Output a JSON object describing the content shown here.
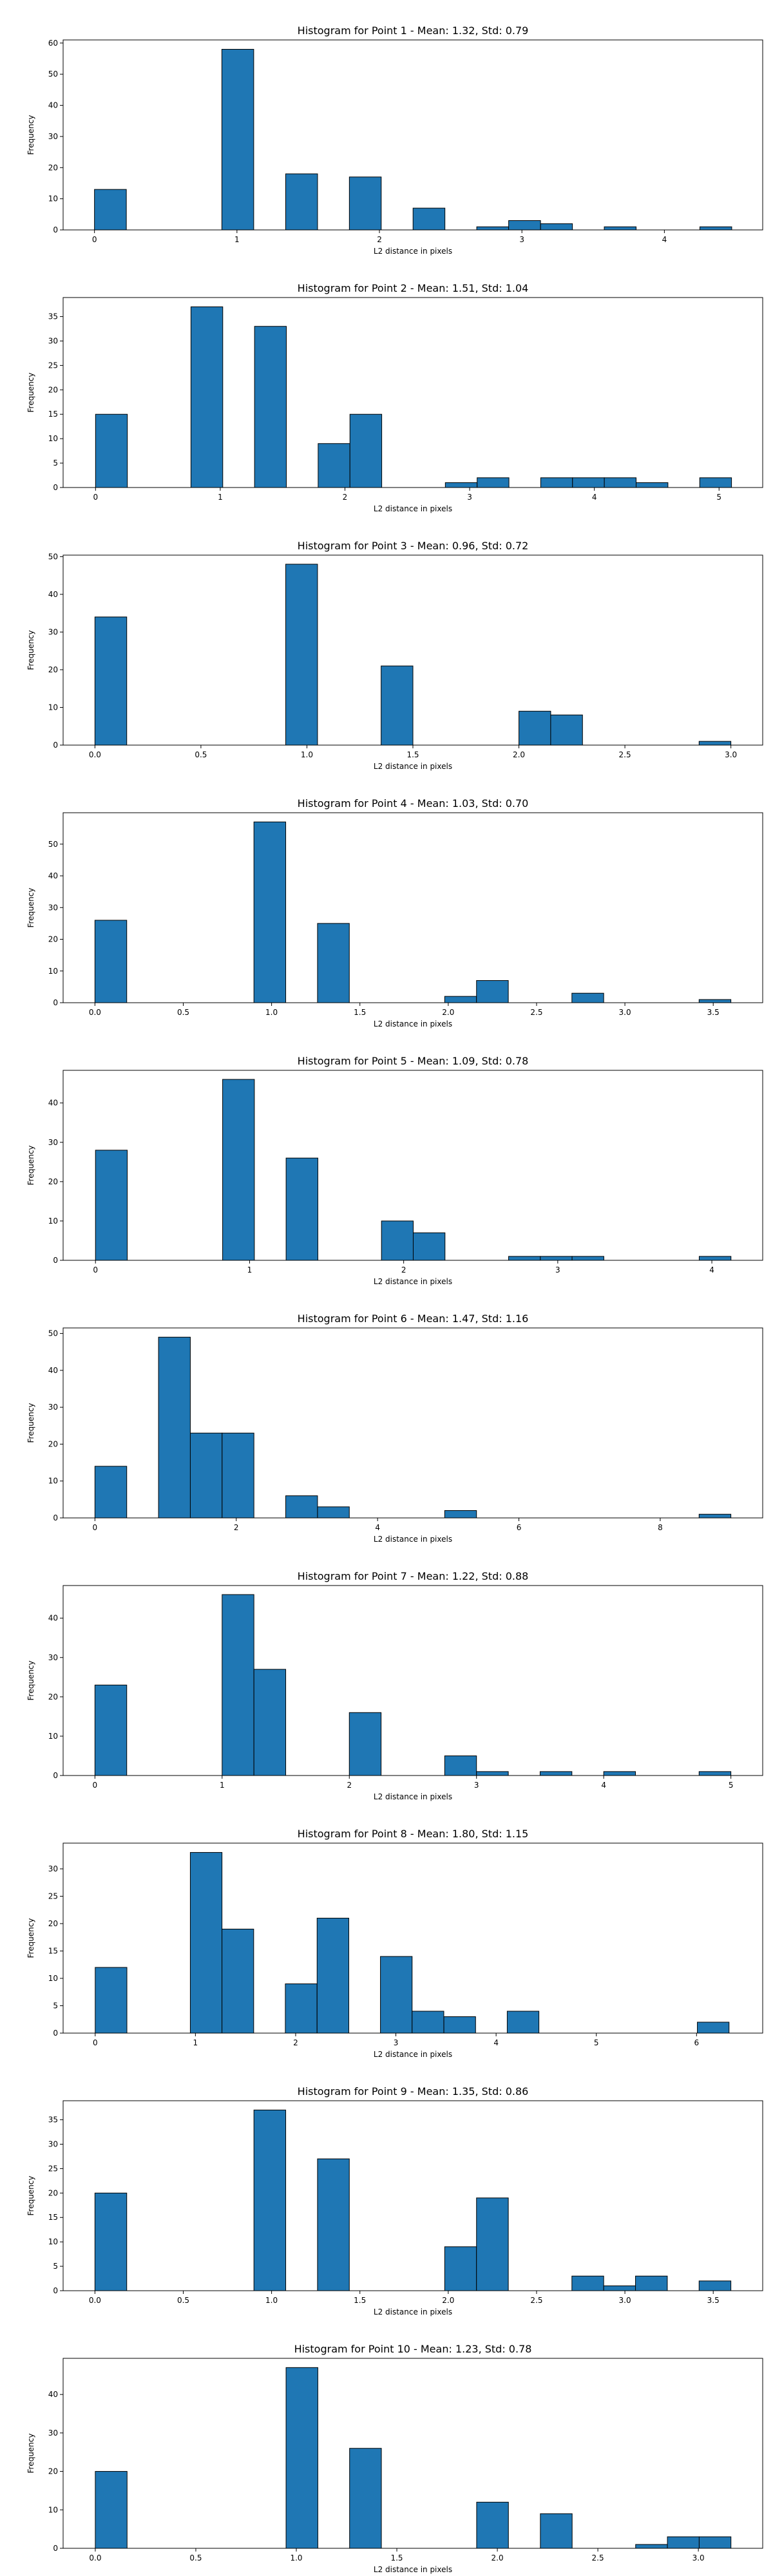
{
  "chart_data": [
    {
      "type": "bar",
      "title": "Histogram for Point 1 - Mean: 1.32, Std: 0.79",
      "xlabel": "L2 distance in pixels",
      "ylabel": "Frequency",
      "xlim": [
        -0.22,
        4.69
      ],
      "ylim": [
        0,
        61
      ],
      "xticks": [
        0,
        1,
        2,
        3,
        4
      ],
      "xtick_labels": [
        "0",
        "1",
        "2",
        "3",
        "4"
      ],
      "yticks": [
        0,
        10,
        20,
        30,
        40,
        50,
        60
      ],
      "bin_width": 0.2236,
      "bars": [
        {
          "x": 0.0,
          "value": 13
        },
        {
          "x": 0.894,
          "value": 58
        },
        {
          "x": 1.342,
          "value": 18
        },
        {
          "x": 1.789,
          "value": 17
        },
        {
          "x": 2.236,
          "value": 7
        },
        {
          "x": 2.683,
          "value": 1
        },
        {
          "x": 2.907,
          "value": 3
        },
        {
          "x": 3.131,
          "value": 2
        },
        {
          "x": 3.578,
          "value": 1
        },
        {
          "x": 4.249,
          "value": 1
        }
      ]
    },
    {
      "type": "bar",
      "title": "Histogram for Point 2 - Mean: 1.51, Std: 1.04",
      "xlabel": "L2 distance in pixels",
      "ylabel": "Frequency",
      "xlim": [
        -0.26,
        5.35
      ],
      "ylim": [
        0,
        38.9
      ],
      "xticks": [
        0,
        1,
        2,
        3,
        4,
        5
      ],
      "xtick_labels": [
        "0",
        "1",
        "2",
        "3",
        "4",
        "5"
      ],
      "yticks": [
        0,
        5,
        10,
        15,
        20,
        25,
        30,
        35
      ],
      "bin_width": 0.255,
      "bars": [
        {
          "x": 0.0,
          "value": 15
        },
        {
          "x": 0.765,
          "value": 37
        },
        {
          "x": 1.275,
          "value": 33
        },
        {
          "x": 1.785,
          "value": 9
        },
        {
          "x": 2.04,
          "value": 15
        },
        {
          "x": 2.805,
          "value": 1
        },
        {
          "x": 3.06,
          "value": 2
        },
        {
          "x": 3.57,
          "value": 2
        },
        {
          "x": 3.825,
          "value": 2
        },
        {
          "x": 4.08,
          "value": 2
        },
        {
          "x": 4.335,
          "value": 1
        },
        {
          "x": 4.845,
          "value": 2
        }
      ]
    },
    {
      "type": "bar",
      "title": "Histogram for Point 3 - Mean: 0.96, Std: 0.72",
      "xlabel": "L2 distance in pixels",
      "ylabel": "Frequency",
      "xlim": [
        -0.15,
        3.15
      ],
      "ylim": [
        0,
        50.4
      ],
      "xticks": [
        0.0,
        0.5,
        1.0,
        1.5,
        2.0,
        2.5,
        3.0
      ],
      "xtick_labels": [
        "0.0",
        "0.5",
        "1.0",
        "1.5",
        "2.0",
        "2.5",
        "3.0"
      ],
      "yticks": [
        0,
        10,
        20,
        30,
        40,
        50
      ],
      "bin_width": 0.15,
      "bars": [
        {
          "x": 0.0,
          "value": 34
        },
        {
          "x": 0.9,
          "value": 48
        },
        {
          "x": 1.35,
          "value": 21
        },
        {
          "x": 2.0,
          "value": 9
        },
        {
          "x": 2.15,
          "value": 8
        },
        {
          "x": 2.85,
          "value": 1
        }
      ]
    },
    {
      "type": "bar",
      "title": "Histogram for Point 4 - Mean: 1.03, Std: 0.70",
      "xlabel": "L2 distance in pixels",
      "ylabel": "Frequency",
      "xlim": [
        -0.18,
        3.78
      ],
      "ylim": [
        0,
        59.9
      ],
      "xticks": [
        0.0,
        0.5,
        1.0,
        1.5,
        2.0,
        2.5,
        3.0,
        3.5
      ],
      "xtick_labels": [
        "0.0",
        "0.5",
        "1.0",
        "1.5",
        "2.0",
        "2.5",
        "3.0",
        "3.5"
      ],
      "yticks": [
        0,
        10,
        20,
        30,
        40,
        50
      ],
      "bin_width": 0.18,
      "bars": [
        {
          "x": 0.0,
          "value": 26
        },
        {
          "x": 0.9,
          "value": 57
        },
        {
          "x": 1.26,
          "value": 25
        },
        {
          "x": 1.98,
          "value": 2
        },
        {
          "x": 2.16,
          "value": 7
        },
        {
          "x": 2.7,
          "value": 3
        },
        {
          "x": 3.42,
          "value": 1
        }
      ]
    },
    {
      "type": "bar",
      "title": "Histogram for Point 5 - Mean: 1.09, Std: 0.78",
      "xlabel": "L2 distance in pixels",
      "ylabel": "Frequency",
      "xlim": [
        -0.21,
        4.33
      ],
      "ylim": [
        0,
        48.3
      ],
      "xticks": [
        0,
        1,
        2,
        3,
        4
      ],
      "xtick_labels": [
        "0",
        "1",
        "2",
        "3",
        "4"
      ],
      "yticks": [
        0,
        10,
        20,
        30,
        40
      ],
      "bin_width": 0.2062,
      "bars": [
        {
          "x": 0.0,
          "value": 28
        },
        {
          "x": 0.825,
          "value": 46
        },
        {
          "x": 1.237,
          "value": 26
        },
        {
          "x": 1.856,
          "value": 10
        },
        {
          "x": 2.062,
          "value": 7
        },
        {
          "x": 2.681,
          "value": 1
        },
        {
          "x": 2.887,
          "value": 1
        },
        {
          "x": 3.093,
          "value": 1
        },
        {
          "x": 3.918,
          "value": 1
        }
      ]
    },
    {
      "type": "bar",
      "title": "Histogram for Point 6 - Mean: 1.47, Std: 1.16",
      "xlabel": "L2 distance in pixels",
      "ylabel": "Frequency",
      "xlim": [
        -0.45,
        9.45
      ],
      "ylim": [
        0,
        51.5
      ],
      "xticks": [
        0,
        2,
        4,
        6,
        8
      ],
      "xtick_labels": [
        "0",
        "2",
        "4",
        "6",
        "8"
      ],
      "yticks": [
        0,
        10,
        20,
        30,
        40,
        50
      ],
      "bin_width": 0.45,
      "bars": [
        {
          "x": 0.0,
          "value": 14
        },
        {
          "x": 0.9,
          "value": 49
        },
        {
          "x": 1.35,
          "value": 23
        },
        {
          "x": 1.8,
          "value": 23
        },
        {
          "x": 2.7,
          "value": 6
        },
        {
          "x": 3.15,
          "value": 3
        },
        {
          "x": 4.95,
          "value": 2
        },
        {
          "x": 8.55,
          "value": 1
        }
      ]
    },
    {
      "type": "bar",
      "title": "Histogram for Point 7 - Mean: 1.22, Std: 0.88",
      "xlabel": "L2 distance in pixels",
      "ylabel": "Frequency",
      "xlim": [
        -0.25,
        5.25
      ],
      "ylim": [
        0,
        48.3
      ],
      "xticks": [
        0,
        1,
        2,
        3,
        4,
        5
      ],
      "xtick_labels": [
        "0",
        "1",
        "2",
        "3",
        "4",
        "5"
      ],
      "yticks": [
        0,
        10,
        20,
        30,
        40
      ],
      "bin_width": 0.25,
      "bars": [
        {
          "x": 0.0,
          "value": 23
        },
        {
          "x": 1.0,
          "value": 46
        },
        {
          "x": 1.25,
          "value": 27
        },
        {
          "x": 2.0,
          "value": 16
        },
        {
          "x": 2.75,
          "value": 5
        },
        {
          "x": 3.0,
          "value": 1
        },
        {
          "x": 3.5,
          "value": 1
        },
        {
          "x": 4.0,
          "value": 1
        },
        {
          "x": 4.75,
          "value": 1
        }
      ]
    },
    {
      "type": "bar",
      "title": "Histogram for Point 8 - Mean: 1.80, Std: 1.15",
      "xlabel": "L2 distance in pixels",
      "ylabel": "Frequency",
      "xlim": [
        -0.32,
        6.66
      ],
      "ylim": [
        0,
        34.7
      ],
      "xticks": [
        0,
        1,
        2,
        3,
        4,
        5,
        6
      ],
      "xtick_labels": [
        "0",
        "1",
        "2",
        "3",
        "4",
        "5",
        "6"
      ],
      "yticks": [
        0,
        5,
        10,
        15,
        20,
        25,
        30
      ],
      "bin_width": 0.3162,
      "bars": [
        {
          "x": 0.0,
          "value": 12
        },
        {
          "x": 0.949,
          "value": 33
        },
        {
          "x": 1.265,
          "value": 19
        },
        {
          "x": 1.897,
          "value": 9
        },
        {
          "x": 2.214,
          "value": 21
        },
        {
          "x": 2.846,
          "value": 14
        },
        {
          "x": 3.162,
          "value": 4
        },
        {
          "x": 3.479,
          "value": 3
        },
        {
          "x": 4.111,
          "value": 4
        },
        {
          "x": 6.008,
          "value": 2
        }
      ]
    },
    {
      "type": "bar",
      "title": "Histogram for Point 9 - Mean: 1.35, Std: 0.86",
      "xlabel": "L2 distance in pixels",
      "ylabel": "Frequency",
      "xlim": [
        -0.18,
        3.78
      ],
      "ylim": [
        0,
        38.9
      ],
      "xticks": [
        0.0,
        0.5,
        1.0,
        1.5,
        2.0,
        2.5,
        3.0,
        3.5
      ],
      "xtick_labels": [
        "0.0",
        "0.5",
        "1.0",
        "1.5",
        "2.0",
        "2.5",
        "3.0",
        "3.5"
      ],
      "yticks": [
        0,
        5,
        10,
        15,
        20,
        25,
        30,
        35
      ],
      "bin_width": 0.18,
      "bars": [
        {
          "x": 0.0,
          "value": 20
        },
        {
          "x": 0.9,
          "value": 37
        },
        {
          "x": 1.26,
          "value": 27
        },
        {
          "x": 1.98,
          "value": 9
        },
        {
          "x": 2.16,
          "value": 19
        },
        {
          "x": 2.7,
          "value": 3
        },
        {
          "x": 2.88,
          "value": 1
        },
        {
          "x": 3.06,
          "value": 3
        },
        {
          "x": 3.42,
          "value": 2
        }
      ]
    },
    {
      "type": "bar",
      "title": "Histogram for Point 10 - Mean: 1.23, Std: 0.78",
      "xlabel": "L2 distance in pixels",
      "ylabel": "Frequency",
      "xlim": [
        -0.16,
        3.32
      ],
      "ylim": [
        0,
        49.4
      ],
      "xticks": [
        0.0,
        0.5,
        1.0,
        1.5,
        2.0,
        2.5,
        3.0
      ],
      "xtick_labels": [
        "0.0",
        "0.5",
        "1.0",
        "1.5",
        "2.0",
        "2.5",
        "3.0"
      ],
      "yticks": [
        0,
        10,
        20,
        30,
        40
      ],
      "bin_width": 0.1581,
      "bars": [
        {
          "x": 0.0,
          "value": 20
        },
        {
          "x": 0.949,
          "value": 47
        },
        {
          "x": 1.265,
          "value": 26
        },
        {
          "x": 1.897,
          "value": 12
        },
        {
          "x": 2.214,
          "value": 9
        },
        {
          "x": 2.688,
          "value": 1
        },
        {
          "x": 2.846,
          "value": 3
        },
        {
          "x": 3.004,
          "value": 3
        }
      ]
    }
  ]
}
